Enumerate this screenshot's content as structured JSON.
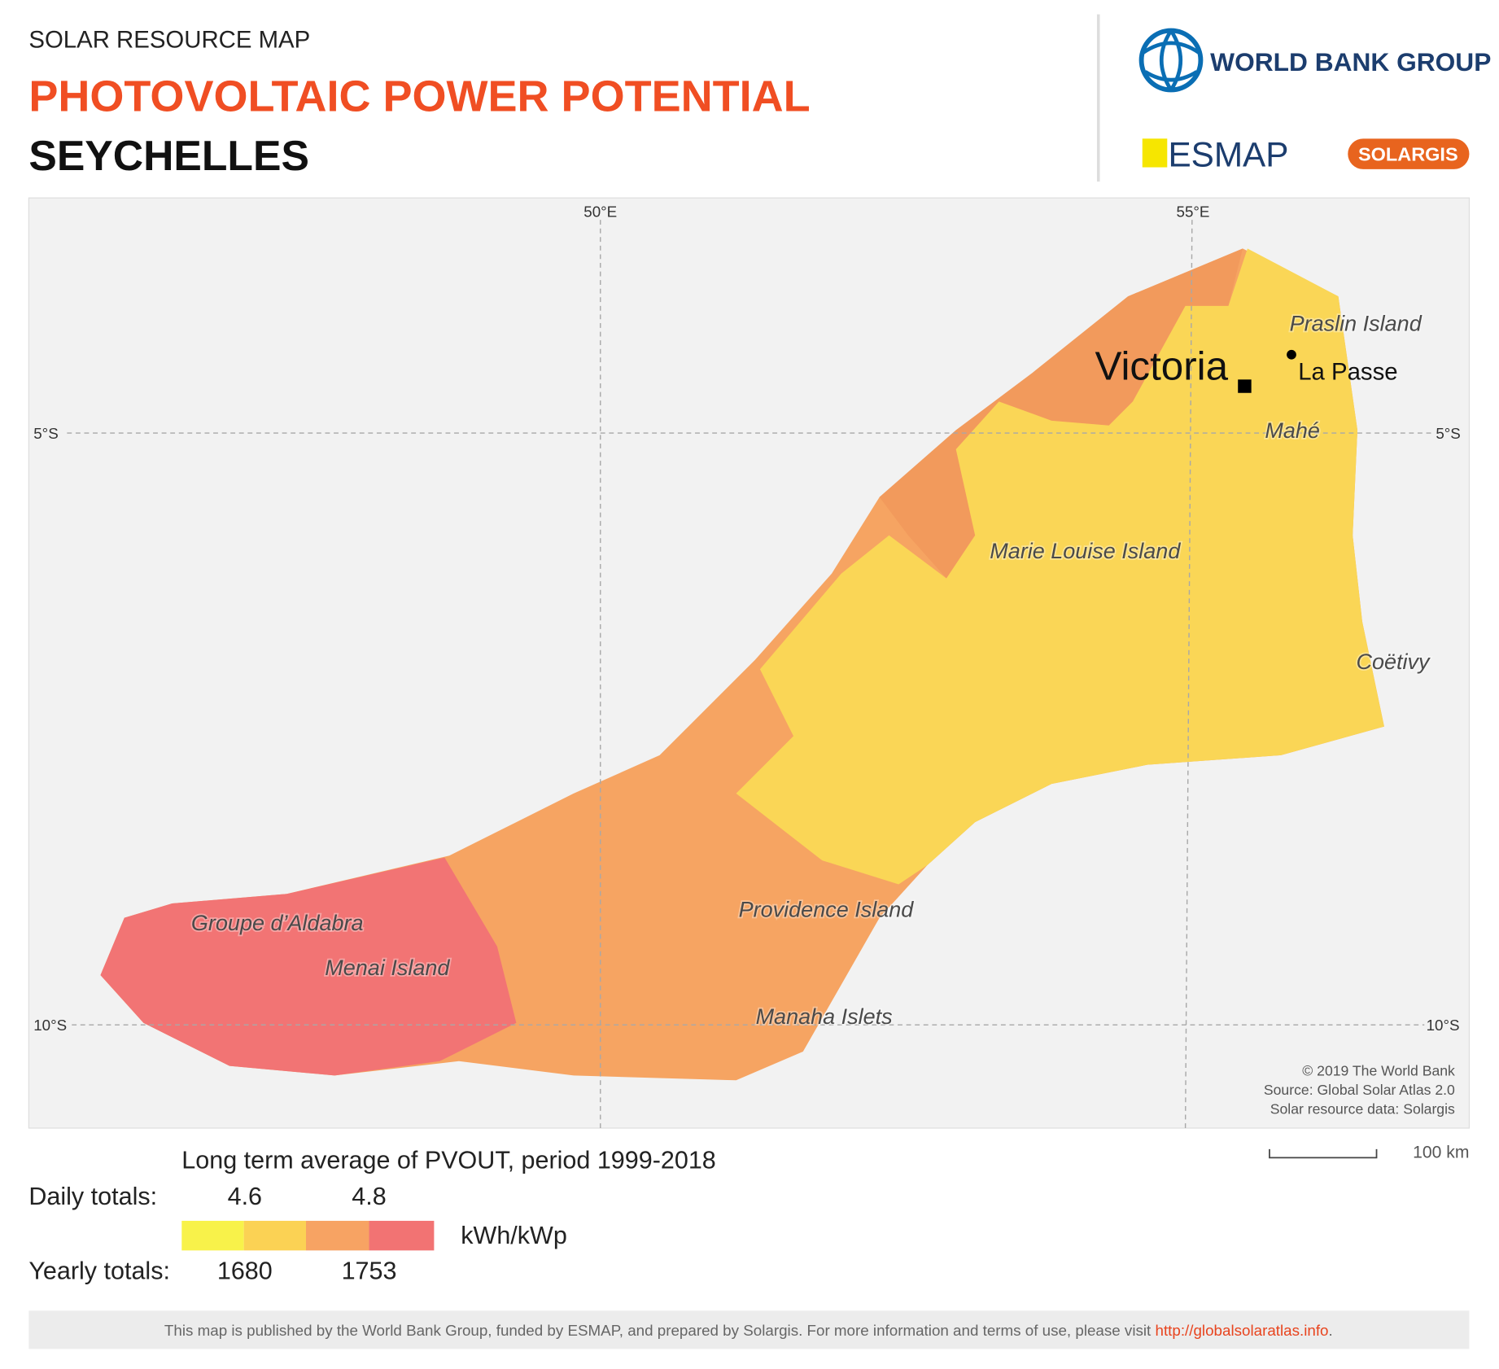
{
  "header": {
    "kicker": "SOLAR RESOURCE MAP",
    "title": "PHOTOVOLTAIC POWER POTENTIAL",
    "country": "SEYCHELLES"
  },
  "logos": {
    "world_bank": "WORLD BANK GROUP",
    "esmap": "ESMAP",
    "solargis": "SOLARGIS"
  },
  "map": {
    "grid_labels": {
      "lon": [
        "50°E",
        "55°E"
      ],
      "lat": [
        "5°S",
        "10°S"
      ]
    },
    "capital": "Victoria",
    "towns": [
      "La Passe"
    ],
    "places": [
      "Praslin Island",
      "Mahé",
      "Marie Louise Island",
      "Coëtivy",
      "Providence Island",
      "Groupe d’Aldabra",
      "Menai Island",
      "Manaha Islets"
    ],
    "attribution": [
      "© 2019 The World Bank",
      "Source: Global Solar Atlas 2.0",
      "Solar resource data: Solargis"
    ]
  },
  "scale_bar": "100 km",
  "legend": {
    "title": "Long term average of PVOUT, period 1999-2018",
    "daily_label": "Daily totals:",
    "daily": [
      4.6,
      4.8
    ],
    "yearly_label": "Yearly totals:",
    "yearly": [
      1680,
      1753
    ],
    "unit": "kWh/kWp",
    "colors": [
      "#f8f24a",
      "#fbd254",
      "#f7a363",
      "#f27373"
    ]
  },
  "footer": {
    "text": "This map is published by the World Bank Group, funded by ESMAP, and prepared by Solargis. For more information and terms of use, please visit ",
    "link": "http://globalsolaratlas.info",
    "end": "."
  }
}
